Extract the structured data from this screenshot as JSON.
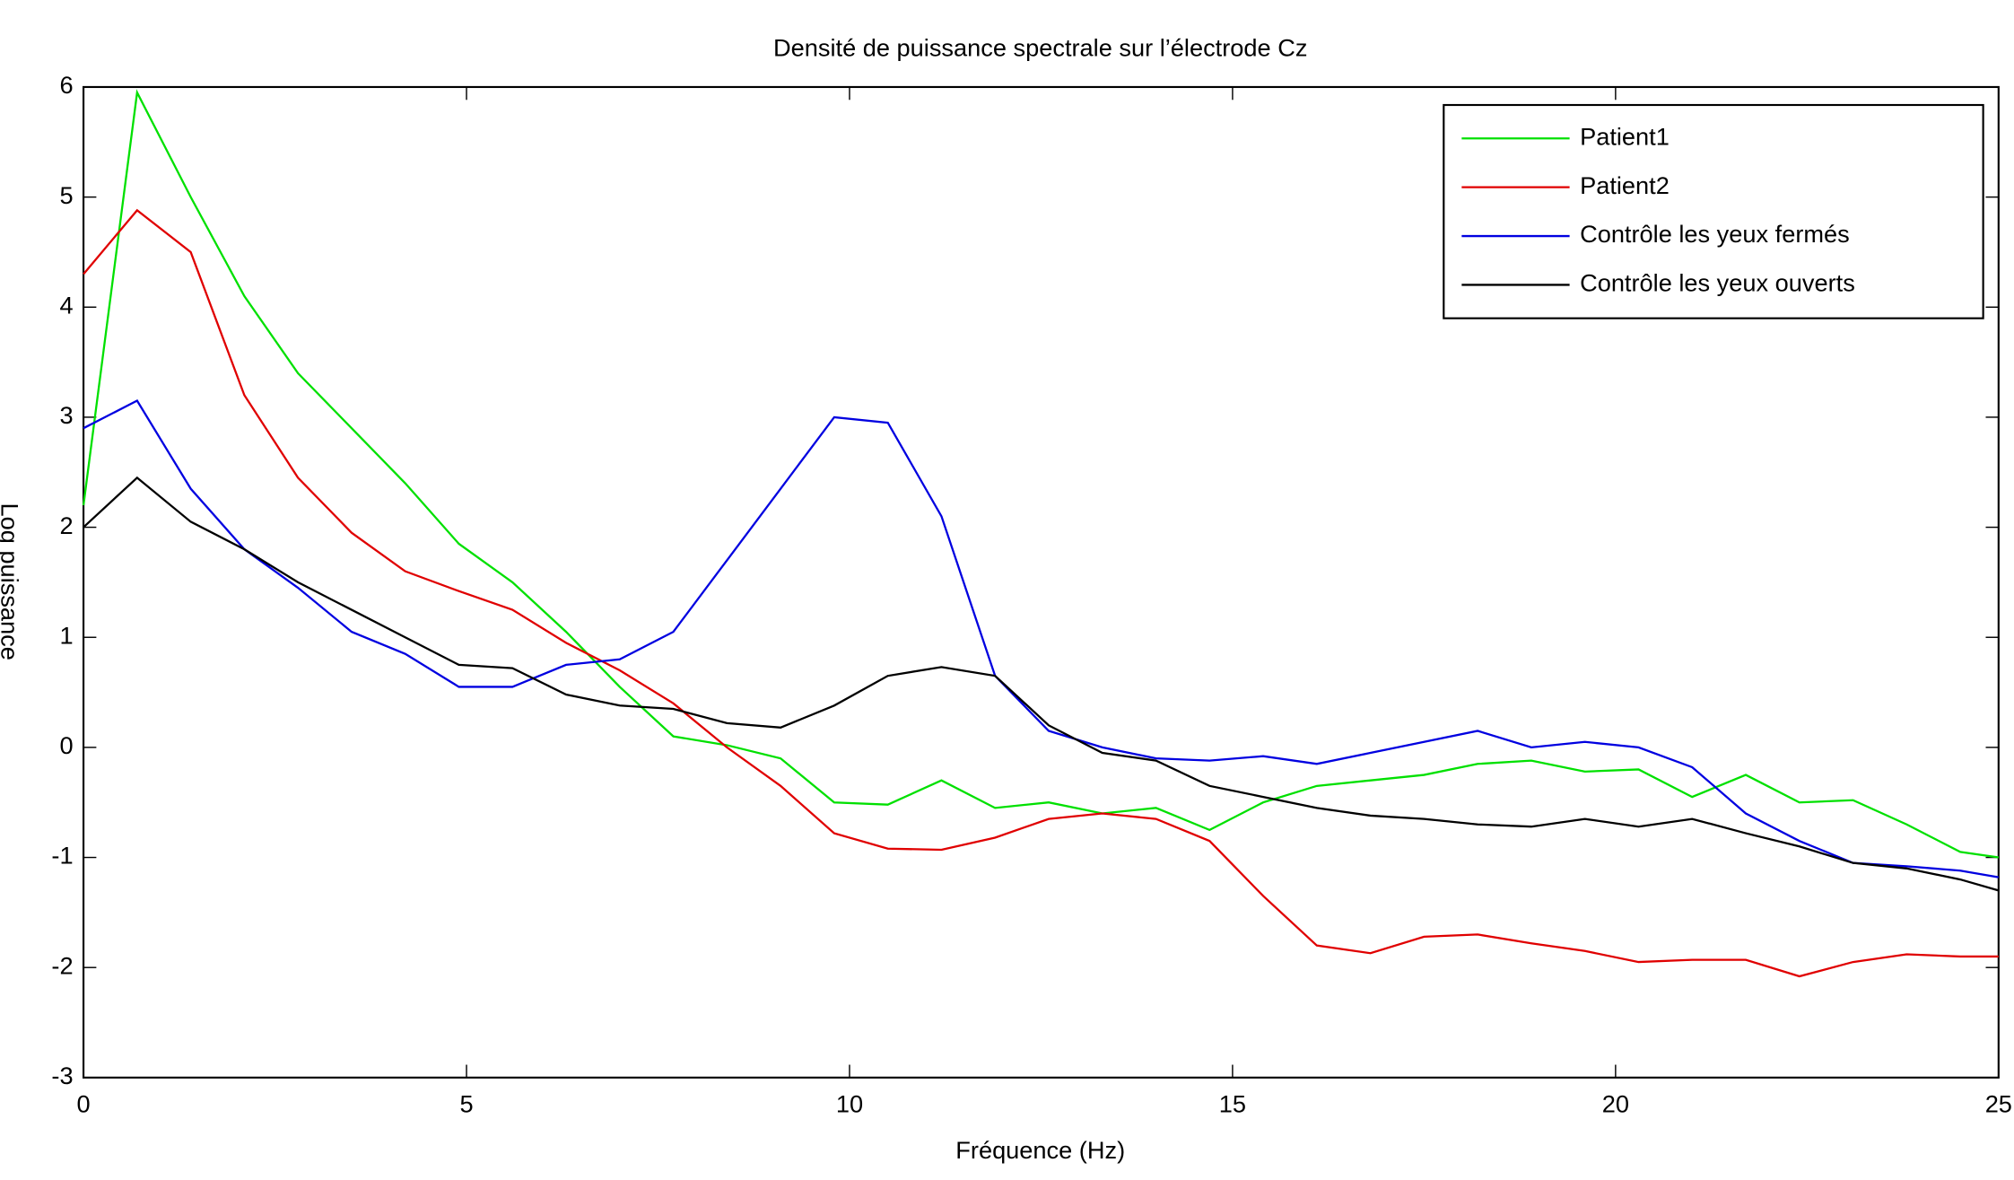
{
  "chart_data": {
    "type": "line",
    "title": "Densité de puissance spectrale sur l’électrode Cz",
    "x_label": "Fréquence (Hz)",
    "y_label": "Log puissance",
    "x": [
      0,
      0.7,
      1.4,
      2.1,
      2.8,
      3.5,
      4.2,
      4.9,
      5.6,
      6.3,
      7.0,
      7.7,
      8.4,
      9.1,
      9.8,
      10.5,
      11.2,
      11.9,
      12.6,
      13.3,
      14.0,
      14.7,
      15.4,
      16.1,
      16.8,
      17.5,
      18.2,
      18.9,
      19.6,
      20.3,
      21.0,
      21.7,
      22.4,
      23.1,
      23.8,
      24.5,
      25
    ],
    "series": [
      {
        "name": "Patient1",
        "color": "#00e000",
        "values": [
          2.2,
          5.95,
          5.0,
          4.1,
          3.4,
          2.9,
          2.4,
          1.85,
          1.5,
          1.05,
          0.55,
          0.1,
          0.02,
          -0.1,
          -0.5,
          -0.52,
          -0.3,
          -0.55,
          -0.5,
          -0.6,
          -0.55,
          -0.75,
          -0.5,
          -0.35,
          -0.3,
          -0.25,
          -0.15,
          -0.12,
          -0.22,
          -0.2,
          -0.45,
          -0.25,
          -0.5,
          -0.48,
          -0.7,
          -0.95,
          -1.0
        ]
      },
      {
        "name": "Patient2",
        "color": "#e00000",
        "values": [
          4.3,
          4.88,
          4.5,
          3.2,
          2.45,
          1.95,
          1.6,
          1.42,
          1.25,
          0.95,
          0.7,
          0.4,
          0.0,
          -0.35,
          -0.78,
          -0.92,
          -0.93,
          -0.82,
          -0.65,
          -0.6,
          -0.65,
          -0.85,
          -1.35,
          -1.8,
          -1.87,
          -1.72,
          -1.7,
          -1.78,
          -1.85,
          -1.95,
          -1.93,
          -1.93,
          -2.08,
          -1.95,
          -1.88,
          -1.9,
          -1.9
        ]
      },
      {
        "name": "Contrôle les yeux fermés",
        "color": "#0000e0",
        "values": [
          2.9,
          3.15,
          2.35,
          1.8,
          1.45,
          1.05,
          0.85,
          0.55,
          0.55,
          0.75,
          0.8,
          1.05,
          1.7,
          2.35,
          3.0,
          2.95,
          2.1,
          0.65,
          0.15,
          0.0,
          -0.1,
          -0.12,
          -0.08,
          -0.15,
          -0.05,
          0.05,
          0.15,
          0.0,
          0.05,
          0.0,
          -0.18,
          -0.6,
          -0.85,
          -1.05,
          -1.08,
          -1.12,
          -1.18
        ]
      },
      {
        "name": "Contrôle les yeux ouverts",
        "color": "#000000",
        "values": [
          2.0,
          2.45,
          2.05,
          1.8,
          1.5,
          1.25,
          1.0,
          0.75,
          0.72,
          0.48,
          0.38,
          0.35,
          0.22,
          0.18,
          0.38,
          0.65,
          0.73,
          0.65,
          0.2,
          -0.05,
          -0.12,
          -0.35,
          -0.45,
          -0.55,
          -0.62,
          -0.65,
          -0.7,
          -0.72,
          -0.65,
          -0.72,
          -0.65,
          -0.78,
          -0.9,
          -1.05,
          -1.1,
          -1.2,
          -1.3
        ]
      }
    ],
    "xlim": [
      0,
      25
    ],
    "xticks": [
      0,
      5,
      10,
      15,
      20,
      25
    ],
    "ylim": [
      -3,
      6
    ],
    "yticks": [
      -3,
      -2,
      -1,
      0,
      1,
      2,
      3,
      4,
      5,
      6
    ],
    "grid": false,
    "legend": "top-right"
  }
}
